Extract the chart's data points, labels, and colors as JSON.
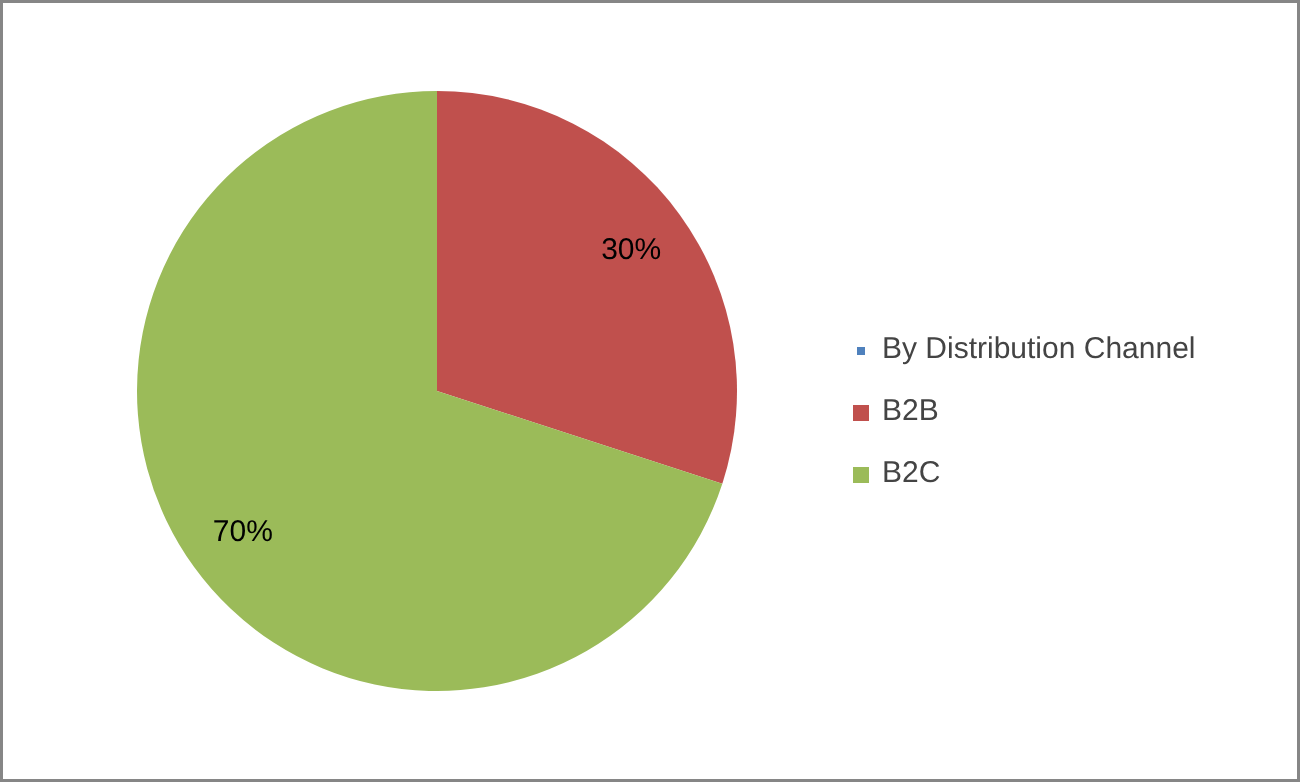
{
  "chart_data": {
    "type": "pie",
    "categories": [
      "By Distribution Channel",
      "B2B",
      "B2C"
    ],
    "values": [
      0,
      30,
      70
    ],
    "colors": [
      "#4f81bd",
      "#c0504d",
      "#9bbb59"
    ],
    "value_labels": [
      null,
      "30%",
      "70%"
    ],
    "legend": "right"
  }
}
